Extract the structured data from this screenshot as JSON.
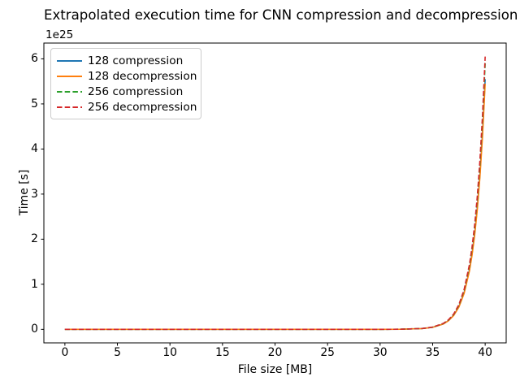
{
  "chart_data": {
    "type": "line",
    "title": "Extrapolated execution time for CNN compression and decompression",
    "xlabel": "File size [MB]",
    "ylabel": "Time [s]",
    "y_axis_offset_text": "1e25",
    "xlim": [
      -2,
      42
    ],
    "ylim_1e25": [
      -0.3,
      6.35
    ],
    "xticks": [
      0,
      5,
      10,
      15,
      20,
      25,
      30,
      35,
      40
    ],
    "yticks_1e25": [
      0,
      1,
      2,
      3,
      4,
      5,
      6
    ],
    "grid": false,
    "legend_position": "upper left",
    "x": [
      0,
      5,
      10,
      15,
      20,
      25,
      30,
      32,
      34,
      35,
      36,
      36.5,
      37,
      37.5,
      38,
      38.5,
      38.75,
      39,
      39.25,
      39.5,
      39.75,
      40
    ],
    "series": [
      {
        "name": "128 compression",
        "color": "#1f77b4",
        "style": "solid",
        "values_1e25": [
          0,
          0,
          0,
          0,
          0,
          0,
          0.0004,
          0.0026,
          0.0175,
          0.0457,
          0.119,
          0.193,
          0.311,
          0.503,
          0.814,
          1.315,
          1.672,
          2.125,
          2.702,
          3.434,
          4.366,
          5.55
        ]
      },
      {
        "name": "128 decompression",
        "color": "#ff7f0e",
        "style": "solid",
        "values_1e25": [
          0,
          0,
          0,
          0,
          0,
          0,
          0.0004,
          0.0025,
          0.0172,
          0.0449,
          0.117,
          0.189,
          0.306,
          0.494,
          0.799,
          1.291,
          1.642,
          2.087,
          2.653,
          3.373,
          4.287,
          5.45
        ]
      },
      {
        "name": "256 compression",
        "color": "#2ca02c",
        "style": "dashed",
        "values_1e25": [
          0,
          0,
          0,
          0,
          0,
          0,
          0.0004,
          0.0027,
          0.0186,
          0.0486,
          0.127,
          0.205,
          0.331,
          0.535,
          0.865,
          1.398,
          1.777,
          2.259,
          2.872,
          3.651,
          4.641,
          5.9
        ]
      },
      {
        "name": "256 decompression",
        "color": "#d62728",
        "style": "dashed",
        "values_1e25": [
          0,
          0,
          0,
          0,
          0,
          0,
          0.0004,
          0.0028,
          0.0191,
          0.0498,
          0.13,
          0.21,
          0.339,
          0.549,
          0.887,
          1.433,
          1.822,
          2.317,
          2.945,
          3.744,
          4.759,
          6.05
        ]
      }
    ]
  }
}
